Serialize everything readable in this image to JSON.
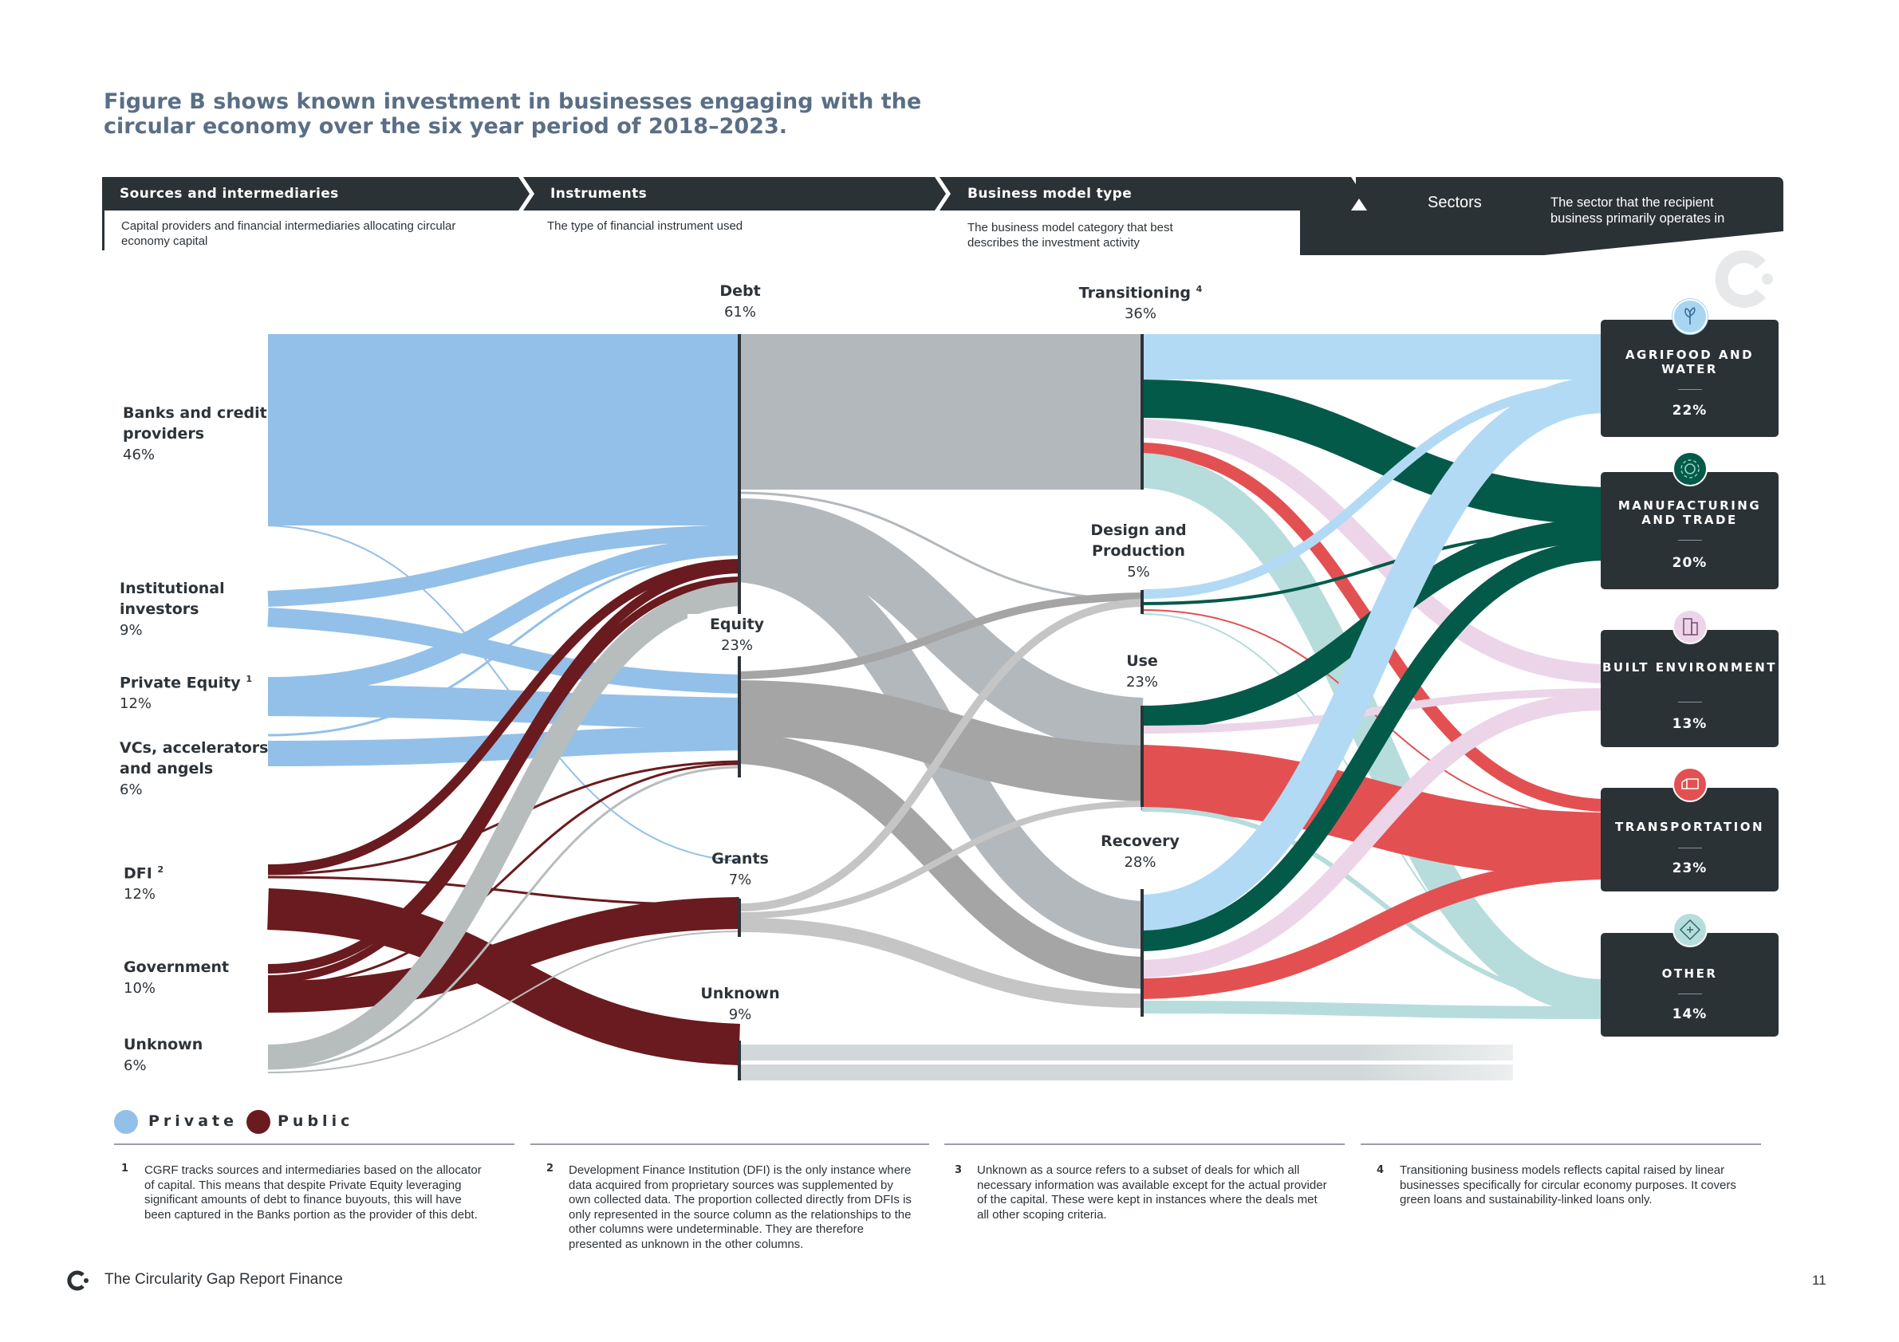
{
  "title": "Figure B shows known investment in businesses engaging with the circular economy over the six year period of 2018–2023.",
  "headers": [
    {
      "label": "Sources and intermediaries",
      "desc": "Capital providers and financial intermediaries allocating circular economy capital"
    },
    {
      "label": "Instruments",
      "desc": "The type of financial instrument used"
    },
    {
      "label": "Business model type",
      "desc": "The business model category that best describes the investment activity"
    },
    {
      "label": "Sectors",
      "desc": "The sector that the recipient business primarily operates in"
    }
  ],
  "sources": [
    {
      "name": "Banks and credit providers",
      "pct": "46%"
    },
    {
      "name": "Institutional investors",
      "pct": "9%"
    },
    {
      "name": "Private Equity",
      "sup": "1",
      "pct": "12%"
    },
    {
      "name": "VCs, accelerators and angels",
      "pct": "6%"
    },
    {
      "name": "DFI",
      "sup": "2",
      "pct": "12%"
    },
    {
      "name": "Government",
      "pct": "10%"
    },
    {
      "name": "Unknown",
      "pct": "6%"
    }
  ],
  "instruments": [
    {
      "name": "Debt",
      "pct": "61%"
    },
    {
      "name": "Equity",
      "pct": "23%"
    },
    {
      "name": "Grants",
      "pct": "7%"
    },
    {
      "name": "Unknown",
      "pct": "9%"
    }
  ],
  "business_models": [
    {
      "name": "Transitioning",
      "sup": "4",
      "pct": "36%"
    },
    {
      "name": "Design and Production",
      "pct": "5%"
    },
    {
      "name": "Use",
      "pct": "23%"
    },
    {
      "name": "Recovery",
      "pct": "28%"
    }
  ],
  "sectors": [
    {
      "name": "AGRIFOOD AND WATER",
      "pct": "22%",
      "icon": "leaf-icon",
      "color": "#a8d5f2"
    },
    {
      "name": "MANUFACTURING AND TRADE",
      "pct": "20%",
      "icon": "gear-icon",
      "color": "#045a49"
    },
    {
      "name": "BUILT ENVIRONMENT",
      "pct": "13%",
      "icon": "building-icon",
      "color": "#ecd5e9"
    },
    {
      "name": "TRANSPORTATION",
      "pct": "23%",
      "icon": "truck-icon",
      "color": "#e35052"
    },
    {
      "name": "OTHER",
      "pct": "14%",
      "icon": "diamond-plus-icon",
      "color": "#b7dcdc"
    }
  ],
  "legend": [
    {
      "label": "Private",
      "color": "#8fbfe7"
    },
    {
      "label": "Public",
      "color": "#6a1b1f"
    }
  ],
  "footnotes": [
    {
      "num": "1",
      "text": "CGRF tracks sources and intermediaries based on the allocator of capital. This means that despite Private Equity leveraging significant amounts of debt to finance buyouts, this will have been captured in the Banks portion as the provider of this debt."
    },
    {
      "num": "2",
      "text": "Development Finance Institution (DFI) is the only instance where data acquired from proprietary sources was supplemented by own collected data. The proportion collected directly from DFIs is only represented in the source column as the relationships to the other columns were undeterminable. They are therefore presented as unknown in the other columns."
    },
    {
      "num": "3",
      "text": "Unknown as a source refers to a subset of deals for which all necessary information was available except for the actual provider of the capital. These were kept in instances where the deals met all other scoping criteria."
    },
    {
      "num": "4",
      "text": "Transitioning business models reflects capital raised by linear businesses specifically for circular economy purposes. It covers green loans and sustainability-linked loans only."
    }
  ],
  "footer": {
    "report": "The Circularity Gap Report Finance",
    "page": "11"
  }
}
